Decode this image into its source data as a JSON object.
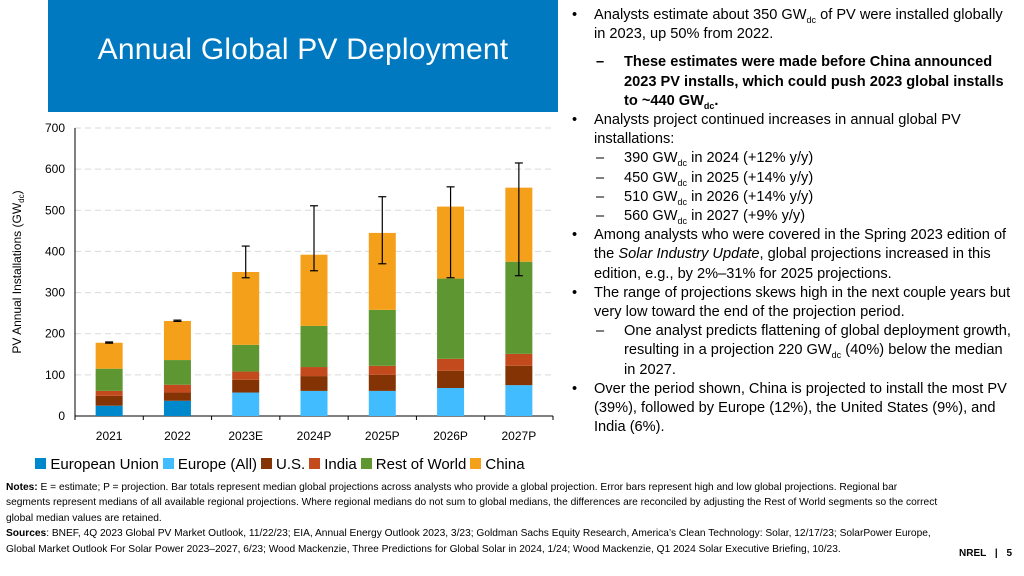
{
  "slide": {
    "title": "Annual Global PV Deployment",
    "footer_org": "NREL",
    "footer_sep": "|",
    "page_number": "5"
  },
  "colors": {
    "title_band": "#0079c1",
    "european_union": "#0088cc",
    "europe_all": "#40bcff",
    "us": "#843404",
    "india": "#c34a1c",
    "rest_of_world": "#5e9732",
    "china": "#f5a01a"
  },
  "chart_data": {
    "type": "bar",
    "stacked": true,
    "title": "",
    "xlabel": "",
    "ylabel": "PV Annual Installations (GW",
    "ylabel_sub": "dc",
    "ylabel_end": ")",
    "ylim": [
      0,
      700
    ],
    "yticks": [
      0,
      100,
      200,
      300,
      400,
      500,
      600,
      700
    ],
    "grid": "horizontal-dashed",
    "legend_position": "bottom",
    "categories": [
      "2021",
      "2022",
      "2023E",
      "2024P",
      "2025P",
      "2026P",
      "2027P"
    ],
    "series": [
      {
        "name": "European Union",
        "key": "european_union",
        "values": [
          25,
          37,
          null,
          null,
          null,
          null,
          null
        ]
      },
      {
        "name": "Europe (All)",
        "key": "europe_all",
        "values": [
          null,
          null,
          57,
          61,
          61,
          68,
          75
        ]
      },
      {
        "name": "U.S.",
        "key": "us",
        "values": [
          24,
          20,
          31,
          36,
          39,
          42,
          47
        ]
      },
      {
        "name": "India",
        "key": "india",
        "values": [
          12,
          19,
          20,
          22,
          22,
          29,
          29
        ]
      },
      {
        "name": "Rest of World",
        "key": "rest_of_world",
        "values": [
          54,
          60,
          65,
          100,
          136,
          195,
          224
        ]
      },
      {
        "name": "China",
        "key": "china",
        "values": [
          63,
          95,
          177,
          173,
          187,
          175,
          180
        ]
      }
    ],
    "totals": [
      178,
      231,
      350,
      392,
      445,
      509,
      555
    ],
    "error_bars": {
      "low": [
        177,
        230,
        336,
        353,
        370,
        336,
        341
      ],
      "high": [
        180,
        233,
        413,
        511,
        533,
        557,
        615
      ]
    }
  },
  "legend": [
    {
      "label": "European Union",
      "key": "european_union"
    },
    {
      "label": "Europe (All)",
      "key": "europe_all"
    },
    {
      "label": "U.S.",
      "key": "us"
    },
    {
      "label": "India",
      "key": "india"
    },
    {
      "label": "Rest of World",
      "key": "rest_of_world"
    },
    {
      "label": "China",
      "key": "china"
    }
  ],
  "bullets": {
    "b1_pre": "Analysts estimate about 350 GW",
    "b1_sub": "dc",
    "b1_post": " of PV were installed globally in 2023, up 50% from 2022.",
    "b1a_pre": "These estimates were made before China announced 2023 PV installs, which could push 2023 global installs to ~440 GW",
    "b1a_sub": "dc",
    "b1a_post": ".",
    "b2": "Analysts project continued increases in annual global PV installations:",
    "projections": [
      {
        "pre": "390 GW",
        "sub": "dc",
        "post": " in 2024 (+12% y/y)"
      },
      {
        "pre": "450 GW",
        "sub": "dc",
        "post": " in 2025 (+14% y/y)"
      },
      {
        "pre": "510 GW",
        "sub": "dc",
        "post": " in 2026 (+14% y/y)"
      },
      {
        "pre": "560 GW",
        "sub": "dc",
        "post": " in 2027 (+9% y/y)"
      }
    ],
    "b3_pre": "Among analysts who were covered in the Spring 2023 edition of the ",
    "b3_italic": "Solar Industry Update",
    "b3_post": ", global projections increased in this edition, e.g., by 2%–31% for 2025 projections.",
    "b4": "The range of projections skews high in the next couple years but very low toward the end of the projection period.",
    "b4a_pre": "One analyst predicts flattening of global deployment growth, resulting in a projection 220 GW",
    "b4a_sub": "dc",
    "b4a_post": " (40%) below the median in 2027.",
    "b5": "Over the period shown, China is projected to install the most PV (39%), followed by Europe (12%), the United States (9%), and India (6%).",
    "bullet_mark": "•",
    "dash_mark": "–"
  },
  "notes": {
    "notes_label": "Notes:",
    "notes_text": " E = estimate; P = projection. Bar totals represent median global projections across analysts who provide a global projection. Error bars represent high and low global projections. Regional bar segments represent medians of all available regional projections. Where regional medians do not sum to global medians, the differences are reconciled by adjusting the Rest of World segments so the correct global median values are retained.",
    "sources_label": "Sources",
    "sources_text": ": BNEF, 4Q 2023 Global PV Market Outlook, 11/22/23; EIA, Annual Energy Outlook 2023, 3/23; Goldman Sachs Equity Research, America’s Clean Technology: Solar, 12/17/23; SolarPower Europe, Global Market Outlook For Solar Power 2023–2027, 6/23; Wood Mackenzie, Three Predictions for Global Solar in 2024, 1/24; Wood Mackenzie, Q1 2024 Solar Executive Briefing, 10/23."
  }
}
